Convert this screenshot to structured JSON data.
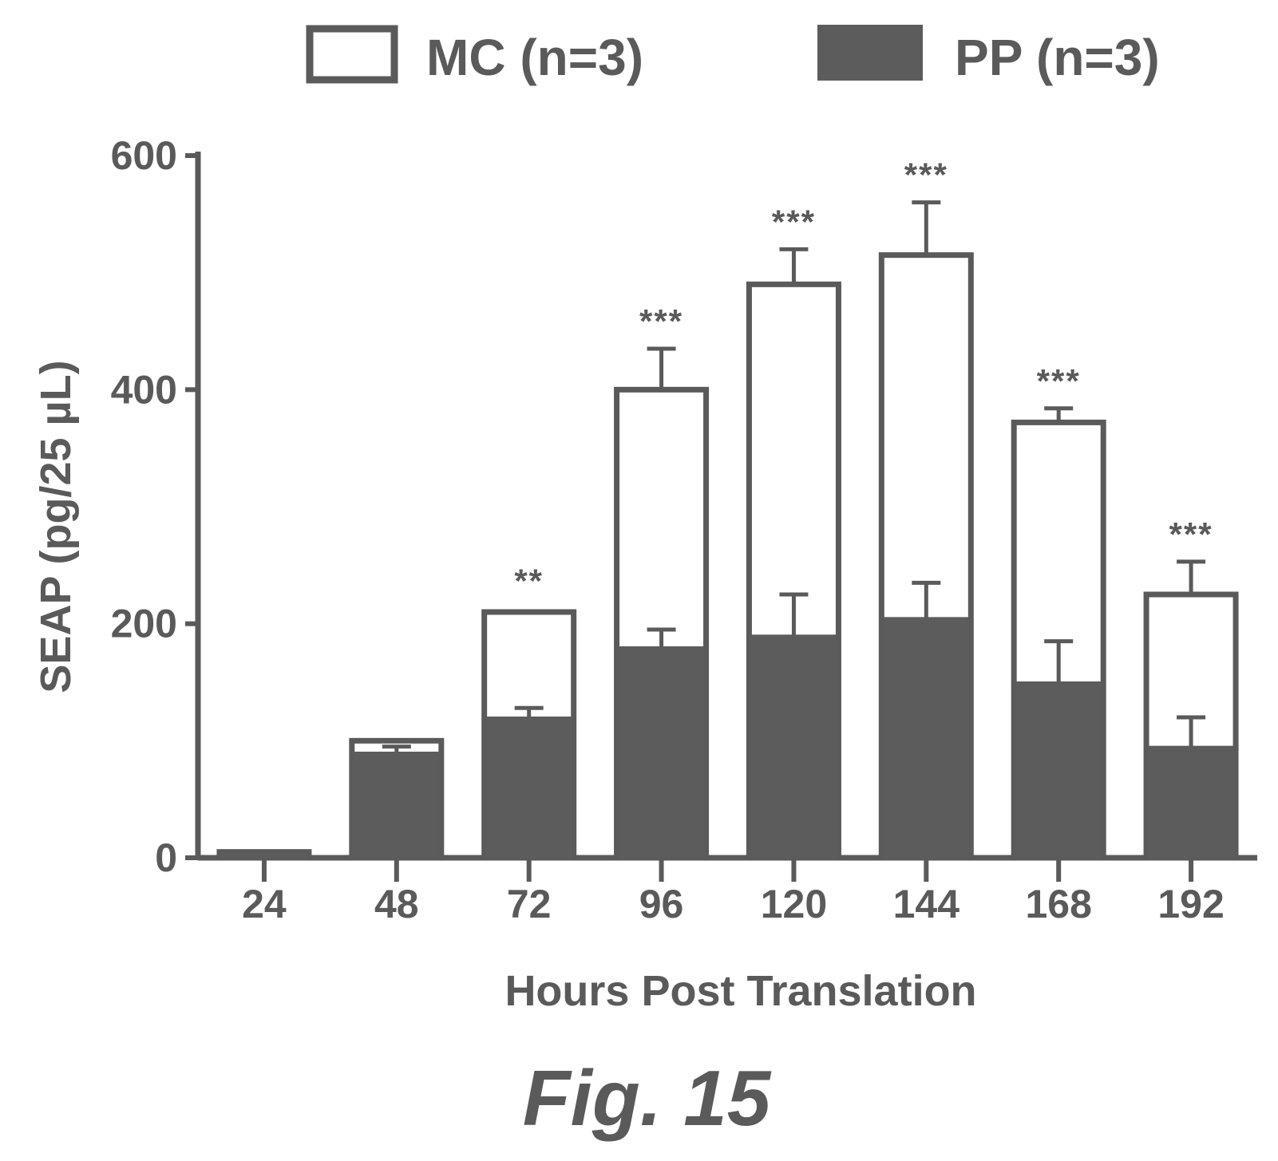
{
  "chart_data": {
    "type": "bar",
    "categories": [
      "24",
      "48",
      "72",
      "96",
      "120",
      "144",
      "168",
      "192"
    ],
    "series": [
      {
        "name": "MC (n=3)",
        "values": [
          5,
          100,
          210,
          400,
          490,
          515,
          372,
          225
        ],
        "errors": [
          2,
          3,
          3,
          35,
          30,
          45,
          12,
          28
        ],
        "fill": "#ffffff",
        "stroke": "#5a5a5a"
      },
      {
        "name": "PP (n=3)",
        "values": [
          5,
          90,
          120,
          180,
          190,
          205,
          150,
          95
        ],
        "errors": [
          1,
          5,
          8,
          15,
          35,
          30,
          35,
          25
        ],
        "fill": "#5c5c5c",
        "stroke": "#5c5c5c"
      }
    ],
    "significance": [
      "",
      "",
      "**",
      "***",
      "***",
      "***",
      "***",
      "***"
    ],
    "xlabel": "Hours Post Translation",
    "ylabel": "SEAP (pg/25 µL)",
    "yticks": [
      0,
      200,
      400,
      600
    ],
    "ylim": [
      0,
      600
    ],
    "legend_position": "top"
  },
  "caption": "Fig. 15",
  "colors": {
    "ink": "#5a5a5a",
    "dark_fill": "#5c5c5c",
    "background": "#ffffff"
  }
}
